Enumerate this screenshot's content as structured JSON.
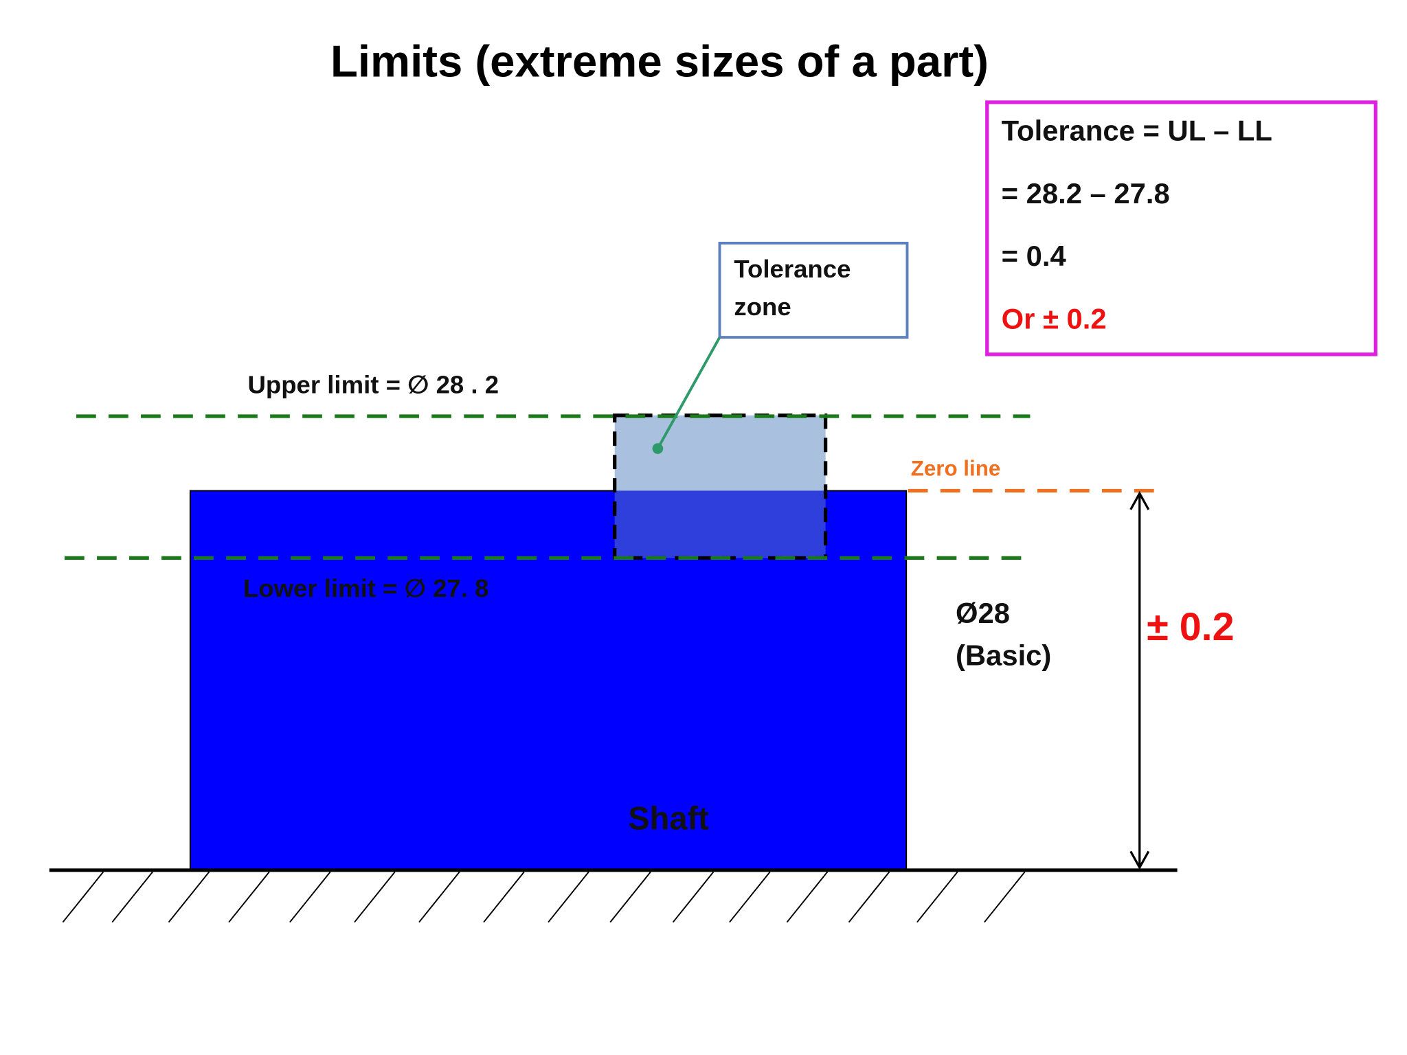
{
  "title": "Limits (extreme sizes of a part)",
  "tolerance_box": {
    "lines": [
      "Tolerance = UL – LL",
      "= 28.2 – 27.8",
      "= 0.4",
      "Or ± 0.2"
    ]
  },
  "callout": {
    "lines": [
      "Tolerance",
      "zone"
    ]
  },
  "labels": {
    "upper_limit": "Upper limit = ∅ 28 . 2",
    "lower_limit": "Lower limit = ∅ 27. 8",
    "zero_line": "Zero line",
    "basic_size": "Ø28",
    "basic_note": "(Basic)",
    "deviation": "± 0.2",
    "shaft": "Shaft"
  }
}
